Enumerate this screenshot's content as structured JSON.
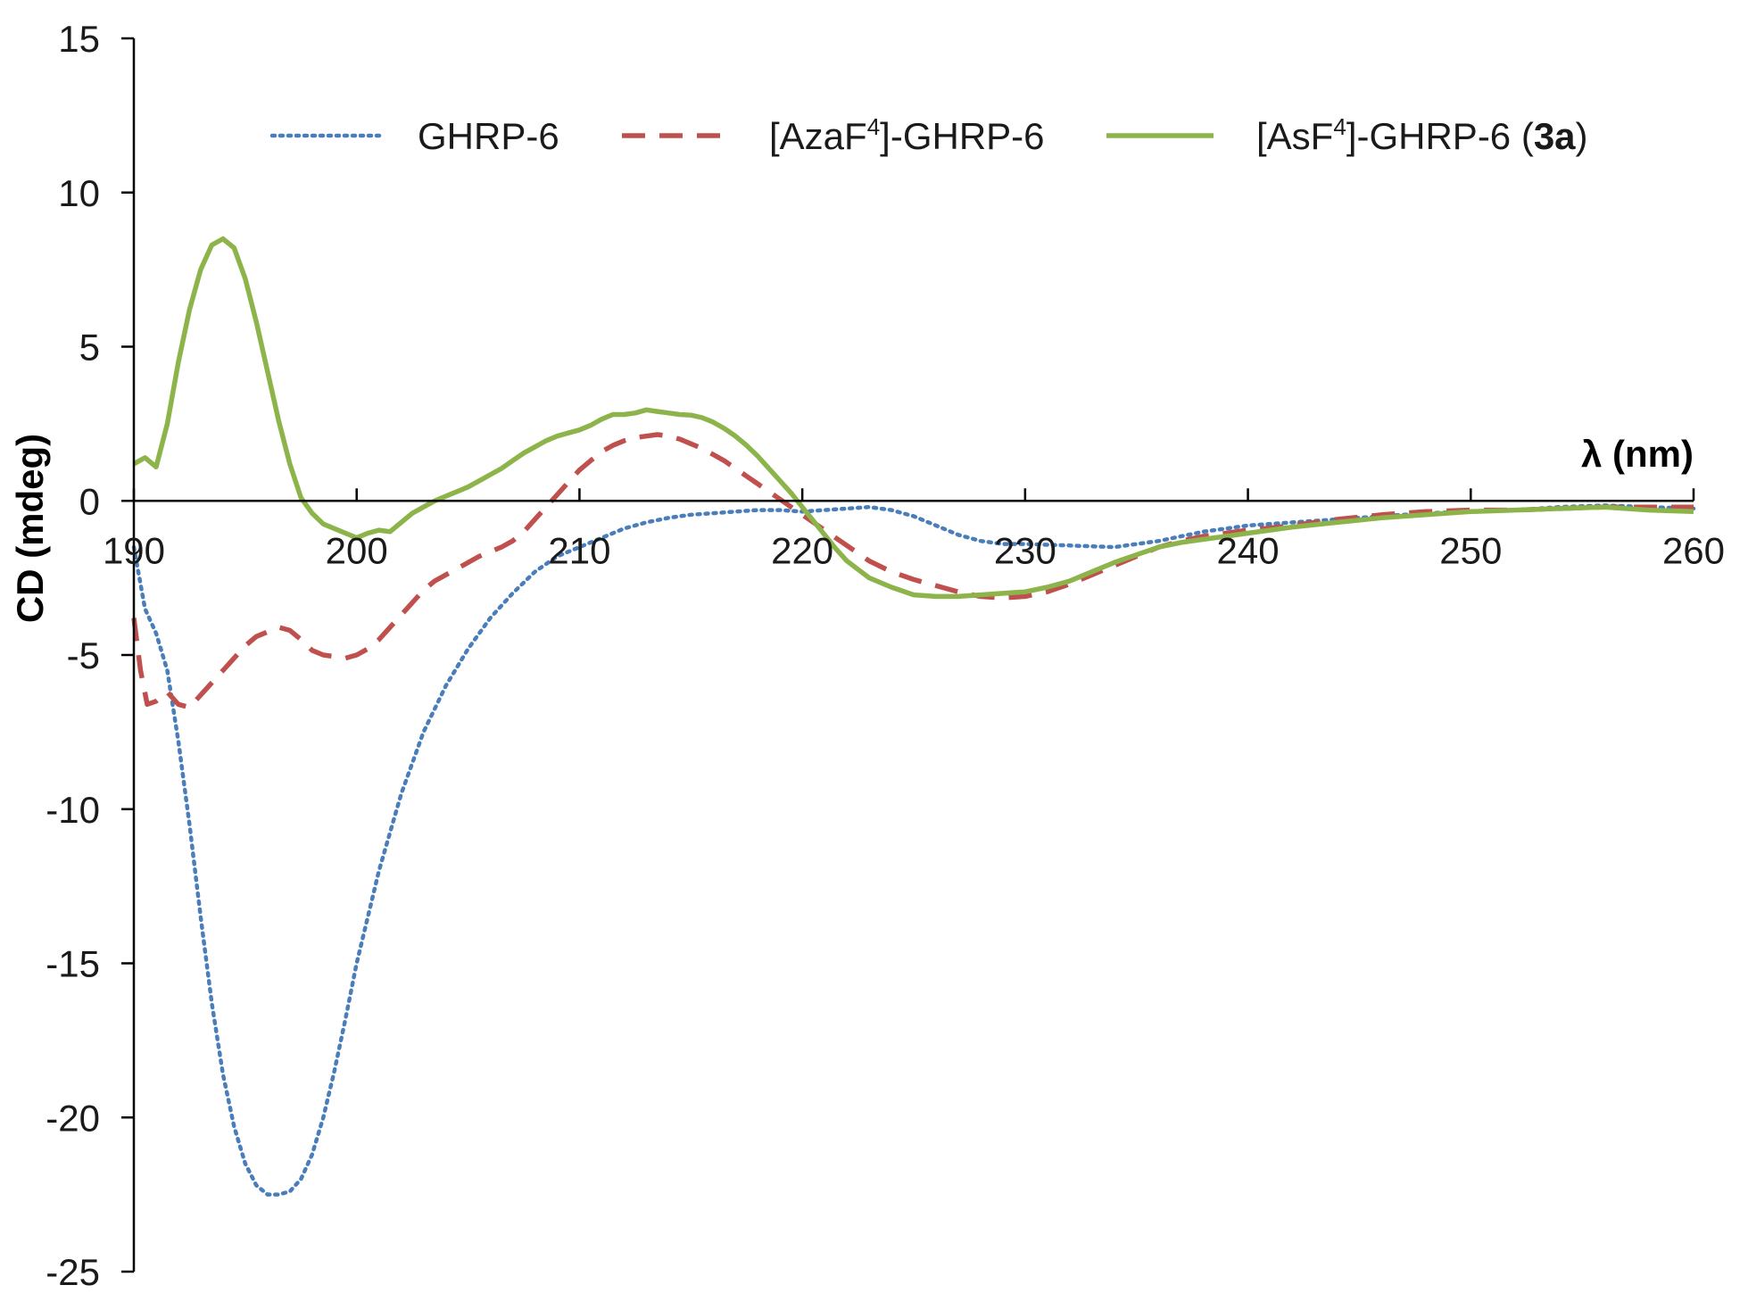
{
  "chart_data": {
    "type": "line",
    "title": "",
    "xlabel": "λ (nm)",
    "ylabel": "CD (mdeg)",
    "xlim": [
      190,
      260
    ],
    "ylim": [
      -25,
      15
    ],
    "x_ticks": [
      "190",
      "200",
      "210",
      "220",
      "230",
      "240",
      "250",
      "260"
    ],
    "y_ticks": [
      "15",
      "10",
      "5",
      "0",
      "-5",
      "-10",
      "-15",
      "-20",
      "-25"
    ],
    "legend_position": "top",
    "series": [
      {
        "name": "GHRP-6",
        "legend": {
          "prefix": "GHRP-6",
          "sup": "",
          "mid": "",
          "bold": "",
          "suffix": ""
        },
        "color": "#4a7ebb",
        "style": "dotted",
        "points": [
          [
            190,
            -1.5
          ],
          [
            190.5,
            -3.5
          ],
          [
            191,
            -4.3
          ],
          [
            191.5,
            -5.5
          ],
          [
            192,
            -7.8
          ],
          [
            192.5,
            -10.5
          ],
          [
            193,
            -13.5
          ],
          [
            193.5,
            -16.3
          ],
          [
            194,
            -18.6
          ],
          [
            194.5,
            -20.3
          ],
          [
            195,
            -21.5
          ],
          [
            195.5,
            -22.2
          ],
          [
            196,
            -22.5
          ],
          [
            196.5,
            -22.5
          ],
          [
            197,
            -22.4
          ],
          [
            197.5,
            -22.0
          ],
          [
            198,
            -21.2
          ],
          [
            198.5,
            -20.0
          ],
          [
            199,
            -18.5
          ],
          [
            199.5,
            -16.8
          ],
          [
            200,
            -15.0
          ],
          [
            201,
            -12.0
          ],
          [
            202,
            -9.5
          ],
          [
            203,
            -7.5
          ],
          [
            204,
            -6.0
          ],
          [
            205,
            -4.8
          ],
          [
            206,
            -3.8
          ],
          [
            207,
            -3.0
          ],
          [
            208,
            -2.3
          ],
          [
            209,
            -1.8
          ],
          [
            210,
            -1.5
          ],
          [
            211,
            -1.2
          ],
          [
            212,
            -0.9
          ],
          [
            213,
            -0.7
          ],
          [
            214,
            -0.55
          ],
          [
            215,
            -0.45
          ],
          [
            216,
            -0.4
          ],
          [
            217,
            -0.35
          ],
          [
            218,
            -0.3
          ],
          [
            219,
            -0.3
          ],
          [
            220,
            -0.35
          ],
          [
            221,
            -0.3
          ],
          [
            222,
            -0.25
          ],
          [
            223,
            -0.2
          ],
          [
            224,
            -0.3
          ],
          [
            225,
            -0.5
          ],
          [
            226,
            -0.8
          ],
          [
            227,
            -1.1
          ],
          [
            228,
            -1.3
          ],
          [
            229,
            -1.4
          ],
          [
            230,
            -1.4
          ],
          [
            232,
            -1.45
          ],
          [
            234,
            -1.5
          ],
          [
            236,
            -1.3
          ],
          [
            238,
            -1.0
          ],
          [
            240,
            -0.8
          ],
          [
            242,
            -0.7
          ],
          [
            244,
            -0.6
          ],
          [
            246,
            -0.5
          ],
          [
            248,
            -0.4
          ],
          [
            250,
            -0.35
          ],
          [
            252,
            -0.3
          ],
          [
            254,
            -0.2
          ],
          [
            256,
            -0.15
          ],
          [
            258,
            -0.2
          ],
          [
            260,
            -0.25
          ]
        ]
      },
      {
        "name": "[AzaF4]-GHRP-6",
        "legend": {
          "prefix": "[AzaF",
          "sup": "4",
          "mid": "]-GHRP-6",
          "bold": "",
          "suffix": ""
        },
        "color": "#c0504d",
        "style": "dashed",
        "points": [
          [
            190,
            -3.8
          ],
          [
            190.3,
            -5.5
          ],
          [
            190.6,
            -6.6
          ],
          [
            191,
            -6.5
          ],
          [
            191.5,
            -6.2
          ],
          [
            192,
            -6.6
          ],
          [
            192.5,
            -6.7
          ],
          [
            193,
            -6.3
          ],
          [
            193.5,
            -5.9
          ],
          [
            194,
            -5.5
          ],
          [
            194.5,
            -5.1
          ],
          [
            195,
            -4.7
          ],
          [
            195.5,
            -4.4
          ],
          [
            196,
            -4.25
          ],
          [
            196.5,
            -4.1
          ],
          [
            197,
            -4.2
          ],
          [
            197.5,
            -4.5
          ],
          [
            198,
            -4.85
          ],
          [
            198.5,
            -5.0
          ],
          [
            199,
            -5.05
          ],
          [
            199.5,
            -5.1
          ],
          [
            200,
            -5.0
          ],
          [
            200.5,
            -4.8
          ],
          [
            201,
            -4.5
          ],
          [
            201.5,
            -4.1
          ],
          [
            202,
            -3.7
          ],
          [
            202.5,
            -3.3
          ],
          [
            203,
            -2.9
          ],
          [
            203.5,
            -2.6
          ],
          [
            204,
            -2.4
          ],
          [
            204.5,
            -2.2
          ],
          [
            205,
            -2.0
          ],
          [
            205.5,
            -1.8
          ],
          [
            206,
            -1.65
          ],
          [
            206.5,
            -1.5
          ],
          [
            207,
            -1.3
          ],
          [
            207.5,
            -1.0
          ],
          [
            208,
            -0.6
          ],
          [
            208.5,
            -0.2
          ],
          [
            209,
            0.2
          ],
          [
            209.5,
            0.6
          ],
          [
            210,
            1.0
          ],
          [
            210.5,
            1.3
          ],
          [
            211,
            1.6
          ],
          [
            211.5,
            1.8
          ],
          [
            212,
            1.95
          ],
          [
            212.5,
            2.05
          ],
          [
            213,
            2.1
          ],
          [
            213.5,
            2.15
          ],
          [
            214,
            2.1
          ],
          [
            214.5,
            2.0
          ],
          [
            215,
            1.85
          ],
          [
            215.5,
            1.7
          ],
          [
            216,
            1.5
          ],
          [
            216.5,
            1.3
          ],
          [
            217,
            1.05
          ],
          [
            217.5,
            0.8
          ],
          [
            218,
            0.55
          ],
          [
            218.5,
            0.3
          ],
          [
            219,
            0.05
          ],
          [
            219.5,
            -0.2
          ],
          [
            220,
            -0.45
          ],
          [
            221,
            -0.95
          ],
          [
            222,
            -1.45
          ],
          [
            223,
            -1.95
          ],
          [
            224,
            -2.3
          ],
          [
            225,
            -2.55
          ],
          [
            226,
            -2.75
          ],
          [
            227,
            -2.95
          ],
          [
            228,
            -3.1
          ],
          [
            229,
            -3.15
          ],
          [
            230,
            -3.1
          ],
          [
            231,
            -2.95
          ],
          [
            232,
            -2.7
          ],
          [
            233,
            -2.4
          ],
          [
            234,
            -2.1
          ],
          [
            235,
            -1.8
          ],
          [
            236,
            -1.5
          ],
          [
            237,
            -1.3
          ],
          [
            238,
            -1.15
          ],
          [
            239,
            -1.05
          ],
          [
            240,
            -0.95
          ],
          [
            242,
            -0.8
          ],
          [
            244,
            -0.6
          ],
          [
            246,
            -0.45
          ],
          [
            248,
            -0.35
          ],
          [
            250,
            -0.3
          ],
          [
            252,
            -0.3
          ],
          [
            254,
            -0.25
          ],
          [
            256,
            -0.2
          ],
          [
            258,
            -0.2
          ],
          [
            260,
            -0.2
          ]
        ]
      },
      {
        "name": "[AsF4]-GHRP-6 (3a)",
        "legend": {
          "prefix": "[AsF",
          "sup": "4",
          "mid": "]-GHRP-6 (",
          "bold": "3a",
          "suffix": ")"
        },
        "color": "#8db44a",
        "style": "solid",
        "points": [
          [
            190,
            1.2
          ],
          [
            190.5,
            1.4
          ],
          [
            191,
            1.1
          ],
          [
            191.5,
            2.5
          ],
          [
            192,
            4.5
          ],
          [
            192.5,
            6.2
          ],
          [
            193,
            7.5
          ],
          [
            193.5,
            8.3
          ],
          [
            194,
            8.5
          ],
          [
            194.5,
            8.2
          ],
          [
            195,
            7.2
          ],
          [
            195.5,
            5.8
          ],
          [
            196,
            4.2
          ],
          [
            196.5,
            2.6
          ],
          [
            197,
            1.2
          ],
          [
            197.5,
            0.1
          ],
          [
            198,
            -0.4
          ],
          [
            198.5,
            -0.75
          ],
          [
            199,
            -0.9
          ],
          [
            199.5,
            -1.05
          ],
          [
            200,
            -1.2
          ],
          [
            200.5,
            -1.05
          ],
          [
            201,
            -0.95
          ],
          [
            201.5,
            -1.0
          ],
          [
            202,
            -0.7
          ],
          [
            202.5,
            -0.4
          ],
          [
            203,
            -0.2
          ],
          [
            203.5,
            0.0
          ],
          [
            204,
            0.15
          ],
          [
            204.5,
            0.3
          ],
          [
            205,
            0.45
          ],
          [
            205.5,
            0.65
          ],
          [
            206,
            0.85
          ],
          [
            206.5,
            1.05
          ],
          [
            207,
            1.3
          ],
          [
            207.5,
            1.55
          ],
          [
            208,
            1.75
          ],
          [
            208.5,
            1.95
          ],
          [
            209,
            2.1
          ],
          [
            209.5,
            2.2
          ],
          [
            210,
            2.3
          ],
          [
            210.5,
            2.45
          ],
          [
            211,
            2.65
          ],
          [
            211.5,
            2.8
          ],
          [
            212,
            2.8
          ],
          [
            212.5,
            2.85
          ],
          [
            213,
            2.95
          ],
          [
            213.5,
            2.9
          ],
          [
            214,
            2.85
          ],
          [
            214.5,
            2.8
          ],
          [
            215,
            2.78
          ],
          [
            215.5,
            2.7
          ],
          [
            216,
            2.55
          ],
          [
            216.5,
            2.35
          ],
          [
            217,
            2.1
          ],
          [
            217.5,
            1.8
          ],
          [
            218,
            1.45
          ],
          [
            218.5,
            1.05
          ],
          [
            219,
            0.65
          ],
          [
            219.5,
            0.25
          ],
          [
            220,
            -0.2
          ],
          [
            220.5,
            -0.65
          ],
          [
            221,
            -1.1
          ],
          [
            221.5,
            -1.55
          ],
          [
            222,
            -1.95
          ],
          [
            223,
            -2.5
          ],
          [
            224,
            -2.8
          ],
          [
            225,
            -3.05
          ],
          [
            226,
            -3.1
          ],
          [
            227,
            -3.1
          ],
          [
            228,
            -3.05
          ],
          [
            229,
            -3.0
          ],
          [
            230,
            -2.95
          ],
          [
            231,
            -2.8
          ],
          [
            232,
            -2.6
          ],
          [
            233,
            -2.3
          ],
          [
            234,
            -2.0
          ],
          [
            235,
            -1.75
          ],
          [
            236,
            -1.5
          ],
          [
            237,
            -1.35
          ],
          [
            238,
            -1.25
          ],
          [
            239,
            -1.15
          ],
          [
            240,
            -1.05
          ],
          [
            242,
            -0.85
          ],
          [
            244,
            -0.7
          ],
          [
            246,
            -0.55
          ],
          [
            248,
            -0.45
          ],
          [
            250,
            -0.35
          ],
          [
            252,
            -0.3
          ],
          [
            254,
            -0.25
          ],
          [
            256,
            -0.2
          ],
          [
            258,
            -0.3
          ],
          [
            260,
            -0.35
          ]
        ]
      }
    ]
  }
}
